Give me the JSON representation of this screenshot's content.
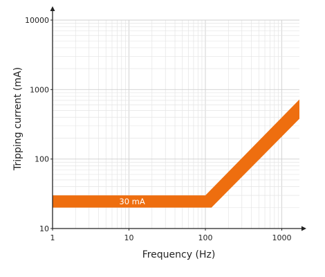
{
  "chart_data": {
    "type": "area",
    "xlabel": "Frequency (Hz)",
    "ylabel": "Tripping current (mA)",
    "x_scale": "log",
    "y_scale": "log",
    "xlim": [
      1,
      1700
    ],
    "ylim": [
      10,
      10000
    ],
    "x_ticks": [
      1,
      10,
      100,
      1000
    ],
    "x_tick_labels": [
      "1",
      "10",
      "100",
      "1000"
    ],
    "y_ticks": [
      10,
      100,
      1000,
      10000
    ],
    "y_tick_labels": [
      "10",
      "100",
      "1000",
      "10000"
    ],
    "grid": true,
    "series": [
      {
        "name": "30 mA",
        "color": "#ee6e0f",
        "upper": {
          "x": [
            1,
            100,
            1700
          ],
          "y": [
            30,
            30,
            720
          ]
        },
        "lower": {
          "x": [
            1,
            120,
            1700
          ],
          "y": [
            20,
            20,
            380
          ]
        }
      }
    ],
    "annotations": [
      {
        "text": "30 mA",
        "x": 11,
        "y": 24.5
      }
    ]
  }
}
